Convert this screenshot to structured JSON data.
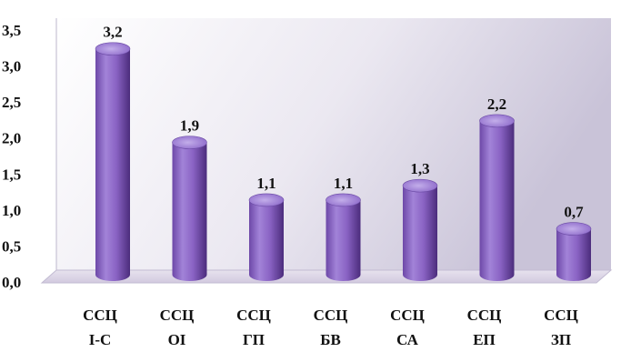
{
  "chart_data": {
    "type": "bar",
    "categories": [
      [
        "ССЦ",
        "І-С"
      ],
      [
        "ССЦ",
        "ОІ"
      ],
      [
        "ССЦ",
        "ГП"
      ],
      [
        "ССЦ",
        "БВ"
      ],
      [
        "ССЦ",
        "СА"
      ],
      [
        "ССЦ",
        "ЕП"
      ],
      [
        "ССЦ",
        "ЗП"
      ]
    ],
    "values": [
      3.2,
      1.9,
      1.1,
      1.1,
      1.3,
      2.2,
      0.7
    ],
    "value_labels": [
      "3,2",
      "1,9",
      "1,1",
      "1,1",
      "1,3",
      "2,2",
      "0,7"
    ],
    "y_ticks": [
      "0,0",
      "0,5",
      "1,0",
      "1,5",
      "2,0",
      "2,5",
      "3,0",
      "3,5"
    ],
    "ylim": [
      0,
      3.5
    ],
    "grid": false,
    "bar_style": "3d-cylinder",
    "colors": {
      "bar_light": "#b79ddf",
      "bar_mid": "#8a63c4",
      "bar_dark": "#4e2f80",
      "bar_top": "#a98ad6",
      "wall_light": "#ffffff",
      "wall_dark": "#c7c2d6",
      "floor": "#ddd6e8"
    }
  }
}
